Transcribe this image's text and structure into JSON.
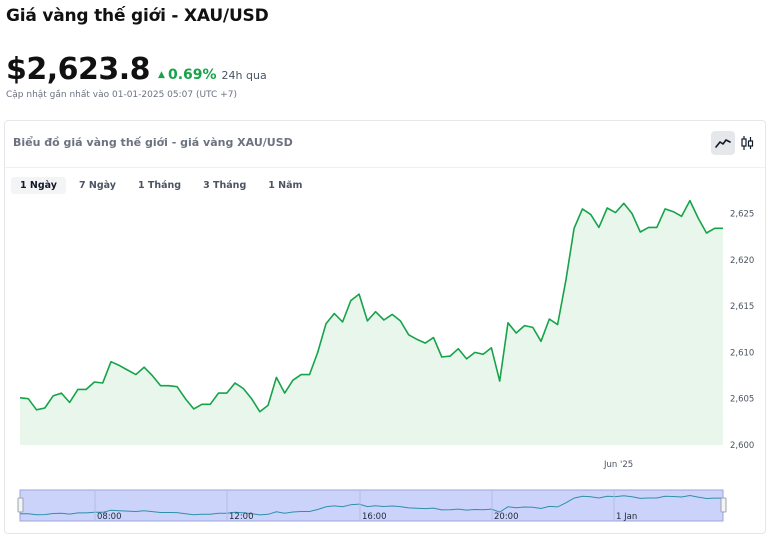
{
  "header": {
    "title": "Giá vàng thế giới - XAU/USD",
    "price": "$2,623.8",
    "change": "0.69%",
    "change_period": "24h qua",
    "updated": "Cập nhật gần nhất vào 01-01-2025 05:07 (UTC +7)"
  },
  "card": {
    "title": "Biểu đồ giá vàng thế giới - giá vàng XAU/USD",
    "tabs": [
      {
        "label": "1 Ngày",
        "active": true
      },
      {
        "label": "7 Ngày",
        "active": false
      },
      {
        "label": "1 Tháng",
        "active": false
      },
      {
        "label": "3 Tháng",
        "active": false
      },
      {
        "label": "1 Năm",
        "active": false
      }
    ],
    "icons": [
      "line-chart-icon",
      "candlestick-icon"
    ]
  },
  "colors": {
    "line": "#16a34a",
    "area": "#e9f6ec",
    "navigator_fill": "#ccd3fb",
    "navigator_border": "#9aa6d8",
    "up": "#16a34a"
  },
  "chart_data": {
    "type": "area",
    "title": "",
    "xlabel": "",
    "ylabel": "",
    "y_ticks": [
      2600,
      2605,
      2610,
      2615,
      2620,
      2625
    ],
    "ylim": [
      2600,
      2627
    ],
    "x_tick_labels": [
      "Jun '25"
    ],
    "navigator_labels": [
      "08:00",
      "12:00",
      "16:00",
      "20:00",
      "1 Jan"
    ],
    "grid": false,
    "series": [
      {
        "values": [
          2605.1,
          2605.0,
          2603.8,
          2604.0,
          2605.3,
          2605.6,
          2604.6,
          2606.0,
          2606.0,
          2606.8,
          2606.7,
          2609.0,
          2608.6,
          2608.1,
          2607.6,
          2608.4,
          2607.5,
          2606.4,
          2606.4,
          2606.3,
          2605.0,
          2603.9,
          2604.4,
          2604.4,
          2605.6,
          2605.6,
          2606.7,
          2606.1,
          2605.0,
          2603.6,
          2604.3,
          2607.3,
          2605.6,
          2607.0,
          2607.6,
          2607.6,
          2610.0,
          2613.1,
          2614.2,
          2613.3,
          2615.6,
          2616.3,
          2613.4,
          2614.4,
          2613.5,
          2614.1,
          2613.4,
          2611.9,
          2611.4,
          2611.0,
          2611.6,
          2609.5,
          2609.6,
          2610.4,
          2609.3,
          2610.0,
          2609.8,
          2610.5,
          2606.9,
          2613.2,
          2612.1,
          2612.9,
          2612.7,
          2611.2,
          2613.6,
          2613.0,
          2617.8,
          2623.4,
          2625.5,
          2624.9,
          2623.5,
          2625.6,
          2625.1,
          2626.1,
          2625.0,
          2623.0,
          2623.5,
          2623.5,
          2625.5,
          2625.2,
          2624.7,
          2626.4,
          2624.5,
          2622.9,
          2623.4,
          2623.4
        ]
      }
    ]
  }
}
